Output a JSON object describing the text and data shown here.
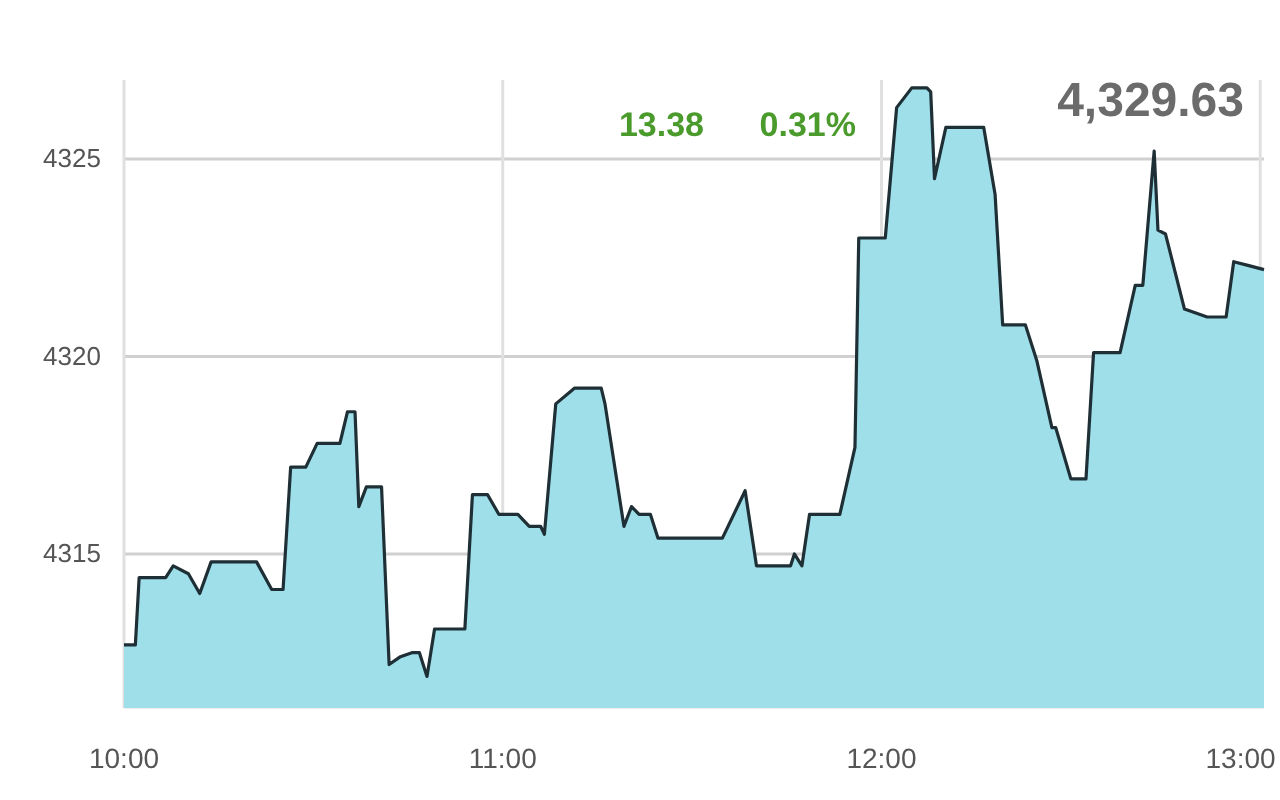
{
  "chart_data": {
    "type": "area",
    "x": [
      10.0,
      10.03,
      10.04,
      10.11,
      10.13,
      10.17,
      10.2,
      10.23,
      10.35,
      10.39,
      10.42,
      10.44,
      10.48,
      10.51,
      10.57,
      10.59,
      10.61,
      10.62,
      10.64,
      10.68,
      10.7,
      10.73,
      10.76,
      10.78,
      10.8,
      10.82,
      10.9,
      10.92,
      10.96,
      10.99,
      11.04,
      11.07,
      11.1,
      11.11,
      11.14,
      11.19,
      11.26,
      11.27,
      11.32,
      11.34,
      11.36,
      11.39,
      11.41,
      11.58,
      11.64,
      11.67,
      11.76,
      11.77,
      11.79,
      11.81,
      11.89,
      11.93,
      11.94,
      12.01,
      12.04,
      12.08,
      12.12,
      12.13,
      12.14,
      12.17,
      12.27,
      12.3,
      12.32,
      12.38,
      12.41,
      12.45,
      12.46,
      12.5,
      12.54,
      12.56,
      12.63,
      12.67,
      12.69,
      12.72,
      12.73,
      12.75,
      12.8,
      12.83,
      12.86,
      12.91,
      12.93,
      12.97,
      13.01
    ],
    "series": [
      {
        "color": "#1e2f36",
        "values": [
          4312.7,
          4312.7,
          4314.4,
          4314.4,
          4314.7,
          4314.5,
          4314.0,
          4314.8,
          4314.8,
          4314.1,
          4314.1,
          4317.2,
          4317.2,
          4317.8,
          4317.8,
          4318.6,
          4318.6,
          4316.2,
          4316.7,
          4316.7,
          4312.2,
          4312.4,
          4312.5,
          4312.5,
          4311.9,
          4313.1,
          4313.1,
          4316.5,
          4316.5,
          4316.0,
          4316.0,
          4315.7,
          4315.7,
          4315.5,
          4318.8,
          4319.2,
          4319.2,
          4318.8,
          4315.7,
          4316.2,
          4316.0,
          4316.0,
          4315.4,
          4315.4,
          4316.6,
          4314.7,
          4314.7,
          4315.0,
          4314.7,
          4316.0,
          4316.0,
          4317.7,
          4323.0,
          4323.0,
          4326.3,
          4326.8,
          4326.8,
          4326.7,
          4324.5,
          4325.8,
          4325.8,
          4324.1,
          4320.8,
          4320.8,
          4319.9,
          4318.2,
          4318.2,
          4316.9,
          4316.9,
          4320.1,
          4320.1,
          4321.8,
          4321.8,
          4325.2,
          4323.2,
          4323.1,
          4321.2,
          4321.1,
          4321.0,
          4321.0,
          4322.4,
          4322.3,
          4322.2
        ]
      }
    ],
    "xlim": [
      10,
      13.01
    ],
    "xticks": [
      {
        "value": 10,
        "label": "10:00"
      },
      {
        "value": 11,
        "label": "11:00"
      },
      {
        "value": 12,
        "label": "12:00"
      },
      {
        "value": 13,
        "label": "13:00"
      }
    ],
    "ylim": [
      4311.1,
      4327
    ],
    "yticks": [
      4315,
      4320,
      4325
    ],
    "grid": true,
    "annotations": [
      "13.38",
      "0.31%",
      "4,329.63"
    ]
  }
}
